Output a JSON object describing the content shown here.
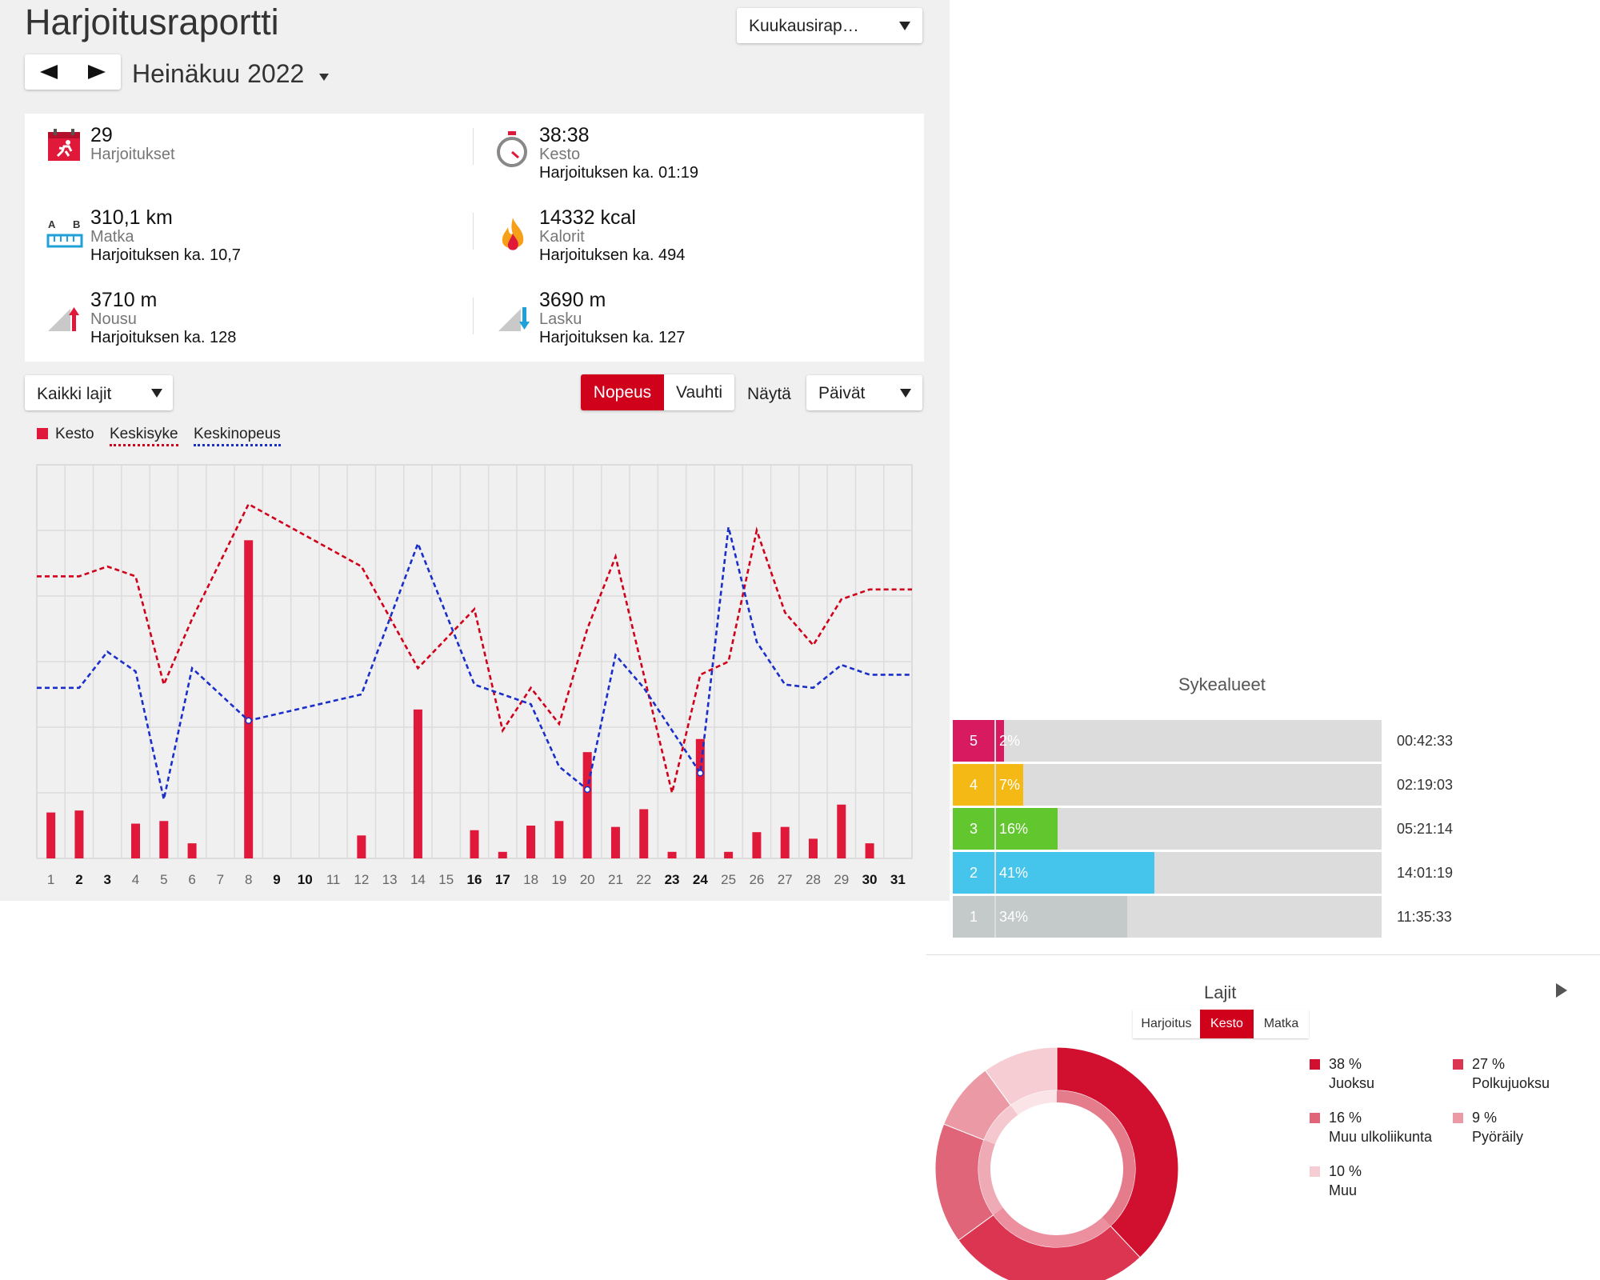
{
  "header": {
    "title": "Harjoitusraportti",
    "report_type": "Kuukausirap…",
    "month": "Heinäkuu 2022"
  },
  "summary": {
    "workouts": {
      "value": "29",
      "label": "Harjoitukset"
    },
    "duration": {
      "value": "38:38",
      "label": "Kesto",
      "avg": "Harjoituksen ka. 01:19"
    },
    "distance": {
      "value": "310,1 km",
      "label": "Matka",
      "avg": "Harjoituksen ka. 10,7"
    },
    "calories": {
      "value": "14332 kcal",
      "label": "Kalorit",
      "avg": "Harjoituksen ka. 494"
    },
    "ascent": {
      "value": "3710 m",
      "label": "Nousu",
      "avg": "Harjoituksen ka. 128"
    },
    "descent": {
      "value": "3690 m",
      "label": "Lasku",
      "avg": "Harjoituksen ka. 127"
    }
  },
  "controls": {
    "sport_filter": "Kaikki lajit",
    "speed_label": "Nopeus",
    "pace_label": "Vauhti",
    "show_label": "Näytä",
    "period": "Päivät"
  },
  "legend": {
    "duration": "Kesto",
    "avg_hr": "Keskisyke",
    "avg_speed": "Keskinopeus"
  },
  "colors": {
    "accent": "#d0021b",
    "bar": "#e0193a",
    "hr_line": "#d0021b",
    "speed_line": "#1a2fc9"
  },
  "chart_data": {
    "type": "bar",
    "categories": [
      "1",
      "2",
      "3",
      "4",
      "5",
      "6",
      "7",
      "8",
      "9",
      "10",
      "11",
      "12",
      "13",
      "14",
      "15",
      "16",
      "17",
      "18",
      "19",
      "20",
      "21",
      "22",
      "23",
      "24",
      "25",
      "26",
      "27",
      "28",
      "29",
      "30",
      "31"
    ],
    "bold_days": [
      "2",
      "3",
      "9",
      "10",
      "16",
      "17",
      "23",
      "24",
      "30",
      "31"
    ],
    "series": [
      {
        "name": "Kesto",
        "type": "bar",
        "values": [
          0.7,
          0.73,
          0,
          0.53,
          0.57,
          0.23,
          0,
          4.85,
          0,
          0,
          0,
          0.35,
          0,
          2.27,
          0,
          0.43,
          0.1,
          0.5,
          0.57,
          1.62,
          0.48,
          0.75,
          0.1,
          1.82,
          0.1,
          0.4,
          0.48,
          0.3,
          0.82,
          0.23,
          0
        ]
      },
      {
        "name": "Keskisyke",
        "type": "line",
        "values": [
          4.3,
          4.3,
          4.45,
          4.3,
          2.65,
          3.65,
          null,
          5.4,
          null,
          null,
          null,
          4.45,
          null,
          2.9,
          null,
          3.8,
          1.95,
          2.6,
          2.05,
          3.5,
          4.6,
          null,
          1.0,
          2.8,
          3.0,
          5.0,
          3.75,
          3.25,
          3.95,
          4.1,
          4.1
        ]
      },
      {
        "name": "Keskinopeus",
        "type": "line",
        "values": [
          2.6,
          2.6,
          3.15,
          2.85,
          0.9,
          2.9,
          null,
          2.1,
          null,
          null,
          null,
          2.5,
          null,
          4.8,
          null,
          2.65,
          2.5,
          2.35,
          1.4,
          1.05,
          3.1,
          2.6,
          null,
          1.3,
          5.05,
          3.3,
          2.65,
          2.6,
          2.95,
          2.8,
          2.8
        ]
      }
    ],
    "grid": true
  },
  "heart_zones": {
    "title": "Sykealueet",
    "zones": [
      {
        "zone": "5",
        "pct": "2%",
        "value": 2,
        "time": "00:42:33",
        "color": "#d81b60"
      },
      {
        "zone": "4",
        "pct": "7%",
        "value": 7,
        "time": "02:19:03",
        "color": "#f5b915"
      },
      {
        "zone": "3",
        "pct": "16%",
        "value": 16,
        "time": "05:21:14",
        "color": "#62c62e"
      },
      {
        "zone": "2",
        "pct": "41%",
        "value": 41,
        "time": "14:01:19",
        "color": "#45c5ec"
      },
      {
        "zone": "1",
        "pct": "34%",
        "value": 34,
        "time": "11:35:33",
        "color": "#c4c9c9"
      }
    ]
  },
  "sports": {
    "title": "Lajit",
    "tabs": [
      "Harjoitus",
      "Kesto",
      "Matka"
    ],
    "active_tab": "Kesto",
    "items": [
      {
        "pct": "38 %",
        "value": 38,
        "name": "Juoksu",
        "color": "#d0102e"
      },
      {
        "pct": "27 %",
        "value": 27,
        "name": "Polkujuoksu",
        "color": "#dc3552"
      },
      {
        "pct": "16 %",
        "value": 16,
        "name": "Muu ulkoliikunta",
        "color": "#e06579"
      },
      {
        "pct": "9 %",
        "value": 9,
        "name": "Pyöräily",
        "color": "#eb9aa5"
      },
      {
        "pct": "10 %",
        "value": 10,
        "name": "Muu",
        "color": "#f5cdd3"
      }
    ]
  }
}
